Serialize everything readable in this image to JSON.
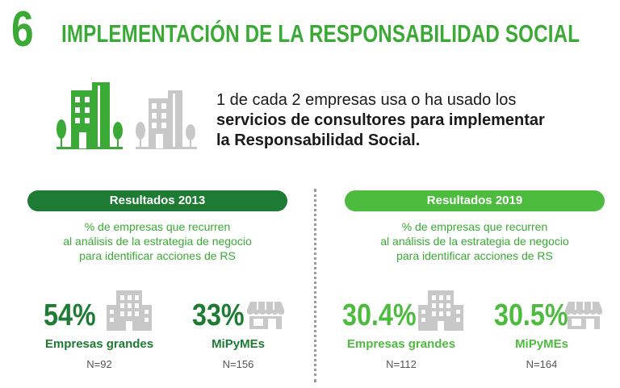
{
  "header": {
    "number": "6",
    "title": "IMPLEMENTACIÓN DE LA RESPONSABILIDAD SOCIAL"
  },
  "statement": {
    "line1": "1 de cada 2 empresas usa o ha usado los",
    "line2": "servicios de consultores para implementar",
    "line3": "la Responsabilidad Social."
  },
  "icons": {
    "highlighted_building": "building-trees-icon",
    "gray_building": "building-trees-icon",
    "large_company": "office-building-icon",
    "sme": "storefront-icon"
  },
  "colors": {
    "primary_green": "#3aa935",
    "dark_green": "#1e7b33",
    "light_green": "#4dbb3e",
    "gray": "#c8c8c8"
  },
  "panels": [
    {
      "header": "Resultados 2013",
      "desc1": "% de empresas que recurren",
      "desc2": "al análisis de la estrategia de negocio",
      "desc3": "para identificar acciones de RS",
      "large": {
        "value": "54%",
        "label": "Empresas grandes",
        "n": "N=92"
      },
      "sme": {
        "value": "33%",
        "label": "MiPyMEs",
        "n": "N=156"
      }
    },
    {
      "header": "Resultados 2019",
      "desc1": "% de empresas que recurren",
      "desc2": "al análisis de la estrategia de negocio",
      "desc3": "para identificar acciones de RS",
      "large": {
        "value": "30.4%",
        "label": "Empresas grandes",
        "n": "N=112"
      },
      "sme": {
        "value": "30.5%",
        "label": "MiPyMEs",
        "n": "N=164"
      }
    }
  ]
}
